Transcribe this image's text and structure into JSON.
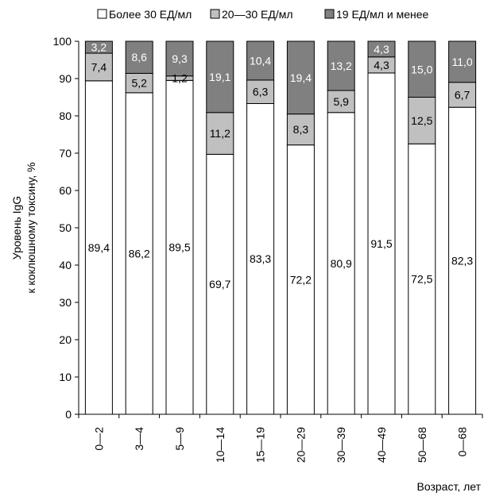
{
  "chart_data": {
    "type": "bar",
    "stacked": true,
    "categories": [
      "0—2",
      "3—4",
      "5—9",
      "10—14",
      "15—19",
      "20—29",
      "30—39",
      "40—49",
      "50—68",
      "0—68"
    ],
    "series": [
      {
        "name": "Более 30 ЕД/мл",
        "color": "#ffffff",
        "values": [
          89.4,
          86.2,
          89.5,
          69.7,
          83.3,
          72.2,
          80.9,
          91.5,
          72.5,
          82.3
        ],
        "labels": [
          "89,4",
          "86,2",
          "89,5",
          "69,7",
          "83,3",
          "72,2",
          "80,9",
          "91,5",
          "72,5",
          "82,3"
        ]
      },
      {
        "name": "20—30 ЕД/мл",
        "color": "#c0c0c0",
        "values": [
          7.4,
          5.2,
          1.2,
          11.2,
          6.3,
          8.3,
          5.9,
          4.3,
          12.5,
          6.7
        ],
        "labels": [
          "7,4",
          "5,2",
          "1,2",
          "11,2",
          "6,3",
          "8,3",
          "5,9",
          "4,3",
          "12,5",
          "6,7"
        ]
      },
      {
        "name": "19 ЕД/мл и менее",
        "color": "#808080",
        "values": [
          3.2,
          8.6,
          9.3,
          19.1,
          10.4,
          19.4,
          13.2,
          4.3,
          15.0,
          11.0
        ],
        "labels": [
          "3,2",
          "8,6",
          "9,3",
          "19,1",
          "10,4",
          "19,4",
          "13,2",
          "4,3",
          "15,0",
          "11,0"
        ]
      }
    ],
    "ylabel": [
      "Уровень IgG",
      "к коклюшному токсину, %"
    ],
    "xlabel": "Возраст, лет",
    "ylim": [
      0,
      100
    ],
    "yticks": [
      0,
      10,
      20,
      30,
      40,
      50,
      60,
      70,
      80,
      90,
      100
    ],
    "legend_position": "top"
  }
}
